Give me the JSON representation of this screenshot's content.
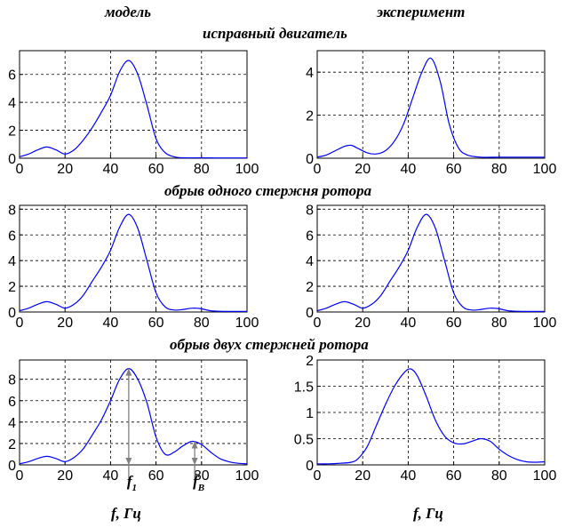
{
  "headers": {
    "col_model": "модель",
    "col_experiment": "эксперимент",
    "row1": "исправный двигатель",
    "row2": "обрыв одного стержня ротора",
    "row3": "обрыв двух стержней ротора",
    "xlabel_left": "f, Гц",
    "xlabel_right": "f, Гц"
  },
  "annotations": {
    "f1": {
      "main": "f",
      "sub": "1",
      "x": 48,
      "y": 9.0
    },
    "fB": {
      "main": "f",
      "sub": "B",
      "x": 77,
      "y": 2.2
    }
  },
  "colors": {
    "curve": "#0000ff",
    "grid": "#000000",
    "arrow": "#808080"
  },
  "chart_data": [
    {
      "id": "model-healthy",
      "type": "line",
      "xlim": [
        0,
        100
      ],
      "ylim": [
        0,
        7.7
      ],
      "xticks": [
        0,
        20,
        40,
        60,
        80,
        100
      ],
      "yticks": [
        0,
        2,
        4,
        6
      ],
      "grid": true,
      "x": [
        0,
        4,
        8,
        12,
        16,
        20,
        24,
        28,
        32,
        36,
        40,
        44,
        48,
        52,
        56,
        60,
        64,
        68,
        72,
        80,
        90,
        100
      ],
      "y": [
        0.1,
        0.3,
        0.6,
        0.8,
        0.6,
        0.3,
        0.6,
        1.3,
        2.2,
        3.3,
        4.5,
        6.2,
        7.0,
        6.0,
        3.8,
        1.4,
        0.4,
        0.1,
        0.03,
        0.03,
        0.02,
        0.02
      ]
    },
    {
      "id": "experiment-healthy",
      "type": "line",
      "xlim": [
        0,
        100
      ],
      "ylim": [
        0,
        5
      ],
      "xticks": [
        0,
        20,
        40,
        60,
        80,
        100
      ],
      "yticks": [
        0,
        2,
        4
      ],
      "grid": true,
      "x": [
        0,
        4,
        8,
        12,
        15,
        18,
        22,
        26,
        30,
        34,
        38,
        42,
        46,
        50,
        54,
        58,
        62,
        66,
        72,
        80,
        90,
        100
      ],
      "y": [
        0.05,
        0.15,
        0.35,
        0.55,
        0.6,
        0.45,
        0.25,
        0.2,
        0.35,
        0.8,
        1.6,
        2.8,
        4.0,
        4.65,
        3.6,
        1.6,
        0.5,
        0.15,
        0.05,
        0.05,
        0.05,
        0.05
      ]
    },
    {
      "id": "model-one-bar",
      "type": "line",
      "xlim": [
        0,
        100
      ],
      "ylim": [
        0,
        8.3
      ],
      "xticks": [
        0,
        20,
        40,
        60,
        80,
        100
      ],
      "yticks": [
        0,
        2,
        4,
        6,
        8
      ],
      "grid": true,
      "x": [
        0,
        4,
        8,
        12,
        16,
        20,
        24,
        28,
        32,
        36,
        40,
        44,
        48,
        52,
        56,
        60,
        64,
        68,
        72,
        76,
        80,
        84,
        90,
        100
      ],
      "y": [
        0.1,
        0.3,
        0.6,
        0.8,
        0.6,
        0.3,
        0.6,
        1.3,
        2.4,
        3.5,
        4.8,
        6.6,
        7.6,
        6.5,
        4.0,
        1.5,
        0.4,
        0.15,
        0.2,
        0.3,
        0.25,
        0.1,
        0.05,
        0.05
      ]
    },
    {
      "id": "experiment-one-bar",
      "type": "line",
      "xlim": [
        0,
        100
      ],
      "ylim": [
        0,
        8.3
      ],
      "xticks": [
        0,
        20,
        40,
        60,
        80,
        100
      ],
      "yticks": [
        0,
        2,
        4,
        6,
        8
      ],
      "grid": true,
      "x": [
        0,
        4,
        8,
        12,
        16,
        20,
        24,
        28,
        32,
        36,
        40,
        44,
        48,
        52,
        56,
        60,
        64,
        68,
        72,
        76,
        80,
        84,
        90,
        100
      ],
      "y": [
        0.1,
        0.3,
        0.6,
        0.8,
        0.6,
        0.3,
        0.6,
        1.3,
        2.4,
        3.5,
        4.8,
        6.6,
        7.6,
        6.5,
        4.0,
        1.5,
        0.4,
        0.15,
        0.2,
        0.3,
        0.25,
        0.1,
        0.05,
        0.05
      ]
    },
    {
      "id": "model-two-bars",
      "type": "line",
      "xlim": [
        0,
        100
      ],
      "ylim": [
        0,
        9.8
      ],
      "xticks": [
        0,
        20,
        40,
        60,
        80,
        100
      ],
      "yticks": [
        0,
        2,
        4,
        6,
        8
      ],
      "grid": true,
      "x": [
        0,
        4,
        8,
        12,
        16,
        20,
        24,
        28,
        32,
        36,
        40,
        44,
        48,
        52,
        56,
        60,
        64,
        68,
        72,
        76,
        80,
        84,
        88,
        92,
        96,
        100
      ],
      "y": [
        0.1,
        0.3,
        0.6,
        0.8,
        0.6,
        0.3,
        0.7,
        1.5,
        2.8,
        4.2,
        6.0,
        8.0,
        9.0,
        8.0,
        5.8,
        2.6,
        1.0,
        1.2,
        1.8,
        2.2,
        1.9,
        1.2,
        0.6,
        0.3,
        0.15,
        0.1
      ]
    },
    {
      "id": "experiment-two-bars",
      "type": "line",
      "xlim": [
        0,
        100
      ],
      "ylim": [
        0,
        2
      ],
      "xticks": [
        0,
        20,
        40,
        60,
        80,
        100
      ],
      "yticks": [
        0,
        0.5,
        1,
        1.5,
        2
      ],
      "grid": true,
      "x": [
        0,
        5,
        10,
        15,
        18,
        22,
        26,
        30,
        34,
        38,
        41,
        44,
        48,
        52,
        56,
        60,
        64,
        68,
        72,
        76,
        80,
        84,
        88,
        92,
        96,
        100
      ],
      "y": [
        0.02,
        0.02,
        0.03,
        0.05,
        0.12,
        0.35,
        0.75,
        1.15,
        1.5,
        1.75,
        1.83,
        1.7,
        1.3,
        0.85,
        0.55,
        0.42,
        0.4,
        0.45,
        0.5,
        0.45,
        0.3,
        0.18,
        0.1,
        0.06,
        0.05,
        0.06
      ]
    }
  ]
}
